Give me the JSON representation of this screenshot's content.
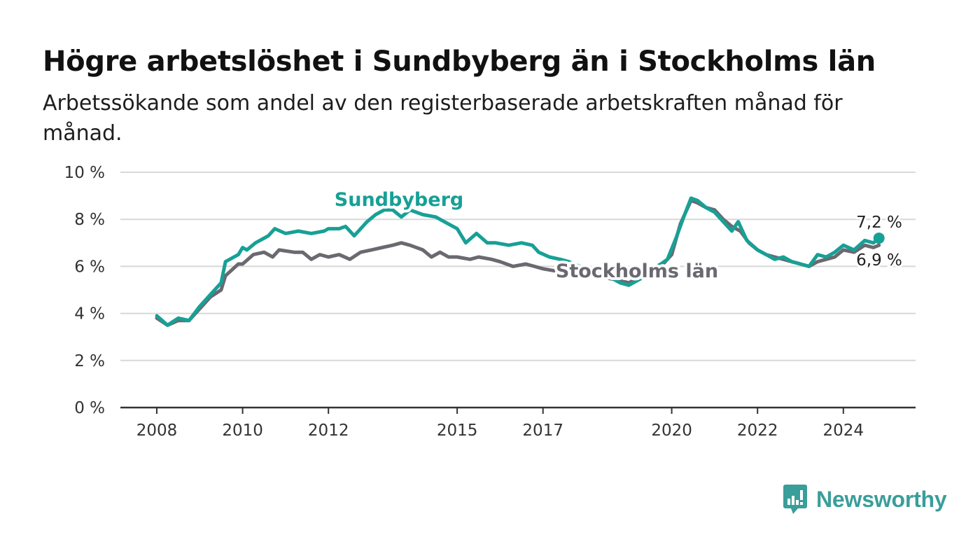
{
  "header": {
    "title": "Högre arbetslöshet i Sundbyberg än i Stockholms län",
    "subtitle": "Arbetssökande som andel av den registerbaserade arbetskraften månad för månad."
  },
  "brand": {
    "name": "Newsworthy",
    "icon": "newsworthy-logo-icon",
    "color": "#3a9e9a"
  },
  "colors": {
    "sundbyberg": "#17a096",
    "stockholm": "#6b6970",
    "grid": "#d8d8d8",
    "axis": "#333333"
  },
  "chart_data": {
    "type": "line",
    "title": "Högre arbetslöshet i Sundbyberg än i Stockholms län",
    "subtitle": "Arbetssökande som andel av den registerbaserade arbetskraften månad för månad.",
    "xlabel": "",
    "ylabel": "",
    "x_ticks": [
      "2008",
      "2010",
      "2012",
      "2015",
      "2017",
      "2020",
      "2022",
      "2024"
    ],
    "y_ticks": [
      "0 %",
      "2 %",
      "4 %",
      "6 %",
      "8 %",
      "10 %"
    ],
    "ylim": [
      0,
      10
    ],
    "grid": "horizontal",
    "legend": "inline labels",
    "series": [
      {
        "name": "Sundbyberg",
        "label": "Sundbyberg",
        "end_label": "7,2 %",
        "points": [
          [
            2008.0,
            3.9
          ],
          [
            2008.25,
            3.5
          ],
          [
            2008.5,
            3.8
          ],
          [
            2008.75,
            3.7
          ],
          [
            2009.0,
            4.3
          ],
          [
            2009.25,
            4.8
          ],
          [
            2009.5,
            5.3
          ],
          [
            2009.6,
            6.2
          ],
          [
            2009.9,
            6.5
          ],
          [
            2010.0,
            6.8
          ],
          [
            2010.1,
            6.7
          ],
          [
            2010.3,
            7.0
          ],
          [
            2010.6,
            7.3
          ],
          [
            2010.75,
            7.6
          ],
          [
            2011.0,
            7.4
          ],
          [
            2011.3,
            7.5
          ],
          [
            2011.6,
            7.4
          ],
          [
            2011.9,
            7.5
          ],
          [
            2012.0,
            7.6
          ],
          [
            2012.25,
            7.6
          ],
          [
            2012.4,
            7.7
          ],
          [
            2012.6,
            7.3
          ],
          [
            2012.9,
            7.9
          ],
          [
            2013.1,
            8.2
          ],
          [
            2013.3,
            8.4
          ],
          [
            2013.5,
            8.4
          ],
          [
            2013.7,
            8.1
          ],
          [
            2013.9,
            8.4
          ],
          [
            2014.2,
            8.2
          ],
          [
            2014.5,
            8.1
          ],
          [
            2014.7,
            7.9
          ],
          [
            2015.0,
            7.6
          ],
          [
            2015.2,
            7.0
          ],
          [
            2015.45,
            7.4
          ],
          [
            2015.7,
            7.0
          ],
          [
            2015.9,
            7.0
          ],
          [
            2016.2,
            6.9
          ],
          [
            2016.5,
            7.0
          ],
          [
            2016.75,
            6.9
          ],
          [
            2016.9,
            6.6
          ],
          [
            2017.15,
            6.4
          ],
          [
            2017.4,
            6.3
          ],
          [
            2017.6,
            6.2
          ],
          [
            2017.85,
            6.0
          ],
          [
            2018.1,
            5.9
          ],
          [
            2018.4,
            5.7
          ],
          [
            2018.6,
            5.5
          ],
          [
            2018.8,
            5.3
          ],
          [
            2019.0,
            5.2
          ],
          [
            2019.3,
            5.5
          ],
          [
            2019.55,
            5.9
          ],
          [
            2019.75,
            6.1
          ],
          [
            2019.9,
            6.3
          ],
          [
            2020.1,
            7.2
          ],
          [
            2020.3,
            8.2
          ],
          [
            2020.45,
            8.9
          ],
          [
            2020.6,
            8.8
          ],
          [
            2020.8,
            8.5
          ],
          [
            2021.0,
            8.3
          ],
          [
            2021.2,
            7.9
          ],
          [
            2021.4,
            7.5
          ],
          [
            2021.55,
            7.9
          ],
          [
            2021.75,
            7.1
          ],
          [
            2022.0,
            6.7
          ],
          [
            2022.2,
            6.5
          ],
          [
            2022.4,
            6.3
          ],
          [
            2022.6,
            6.4
          ],
          [
            2022.8,
            6.2
          ],
          [
            2023.0,
            6.1
          ],
          [
            2023.2,
            6.0
          ],
          [
            2023.4,
            6.5
          ],
          [
            2023.6,
            6.4
          ],
          [
            2023.8,
            6.6
          ],
          [
            2024.0,
            6.9
          ],
          [
            2024.25,
            6.7
          ],
          [
            2024.5,
            7.1
          ],
          [
            2024.7,
            7.0
          ],
          [
            2024.83,
            7.2
          ]
        ]
      },
      {
        "name": "Stockholms län",
        "label": "Stockholms län",
        "end_label": "6,9 %",
        "points": [
          [
            2008.0,
            3.8
          ],
          [
            2008.25,
            3.5
          ],
          [
            2008.5,
            3.7
          ],
          [
            2008.75,
            3.7
          ],
          [
            2009.0,
            4.2
          ],
          [
            2009.25,
            4.7
          ],
          [
            2009.5,
            5.0
          ],
          [
            2009.6,
            5.6
          ],
          [
            2009.9,
            6.1
          ],
          [
            2010.0,
            6.1
          ],
          [
            2010.25,
            6.5
          ],
          [
            2010.5,
            6.6
          ],
          [
            2010.7,
            6.4
          ],
          [
            2010.85,
            6.7
          ],
          [
            2011.2,
            6.6
          ],
          [
            2011.4,
            6.6
          ],
          [
            2011.6,
            6.3
          ],
          [
            2011.8,
            6.5
          ],
          [
            2012.0,
            6.4
          ],
          [
            2012.25,
            6.5
          ],
          [
            2012.5,
            6.3
          ],
          [
            2012.75,
            6.6
          ],
          [
            2013.0,
            6.7
          ],
          [
            2013.25,
            6.8
          ],
          [
            2013.5,
            6.9
          ],
          [
            2013.7,
            7.0
          ],
          [
            2013.9,
            6.9
          ],
          [
            2014.2,
            6.7
          ],
          [
            2014.4,
            6.4
          ],
          [
            2014.6,
            6.6
          ],
          [
            2014.8,
            6.4
          ],
          [
            2015.0,
            6.4
          ],
          [
            2015.3,
            6.3
          ],
          [
            2015.5,
            6.4
          ],
          [
            2015.8,
            6.3
          ],
          [
            2016.0,
            6.2
          ],
          [
            2016.3,
            6.0
          ],
          [
            2016.6,
            6.1
          ],
          [
            2016.8,
            6.0
          ],
          [
            2017.0,
            5.9
          ],
          [
            2017.3,
            5.8
          ],
          [
            2017.6,
            5.7
          ],
          [
            2017.9,
            5.6
          ],
          [
            2018.2,
            5.6
          ],
          [
            2018.5,
            5.5
          ],
          [
            2018.8,
            5.4
          ],
          [
            2019.0,
            5.3
          ],
          [
            2019.3,
            5.6
          ],
          [
            2019.6,
            5.9
          ],
          [
            2019.8,
            6.1
          ],
          [
            2020.0,
            6.5
          ],
          [
            2020.2,
            7.8
          ],
          [
            2020.45,
            8.8
          ],
          [
            2020.6,
            8.7
          ],
          [
            2020.8,
            8.5
          ],
          [
            2021.0,
            8.4
          ],
          [
            2021.2,
            8.0
          ],
          [
            2021.4,
            7.7
          ],
          [
            2021.6,
            7.5
          ],
          [
            2021.8,
            7.0
          ],
          [
            2022.0,
            6.7
          ],
          [
            2022.2,
            6.5
          ],
          [
            2022.4,
            6.4
          ],
          [
            2022.6,
            6.3
          ],
          [
            2022.8,
            6.2
          ],
          [
            2023.0,
            6.1
          ],
          [
            2023.2,
            6.0
          ],
          [
            2023.4,
            6.2
          ],
          [
            2023.6,
            6.3
          ],
          [
            2023.8,
            6.4
          ],
          [
            2024.0,
            6.7
          ],
          [
            2024.25,
            6.6
          ],
          [
            2024.5,
            6.9
          ],
          [
            2024.7,
            6.8
          ],
          [
            2024.83,
            6.9
          ]
        ]
      }
    ]
  }
}
